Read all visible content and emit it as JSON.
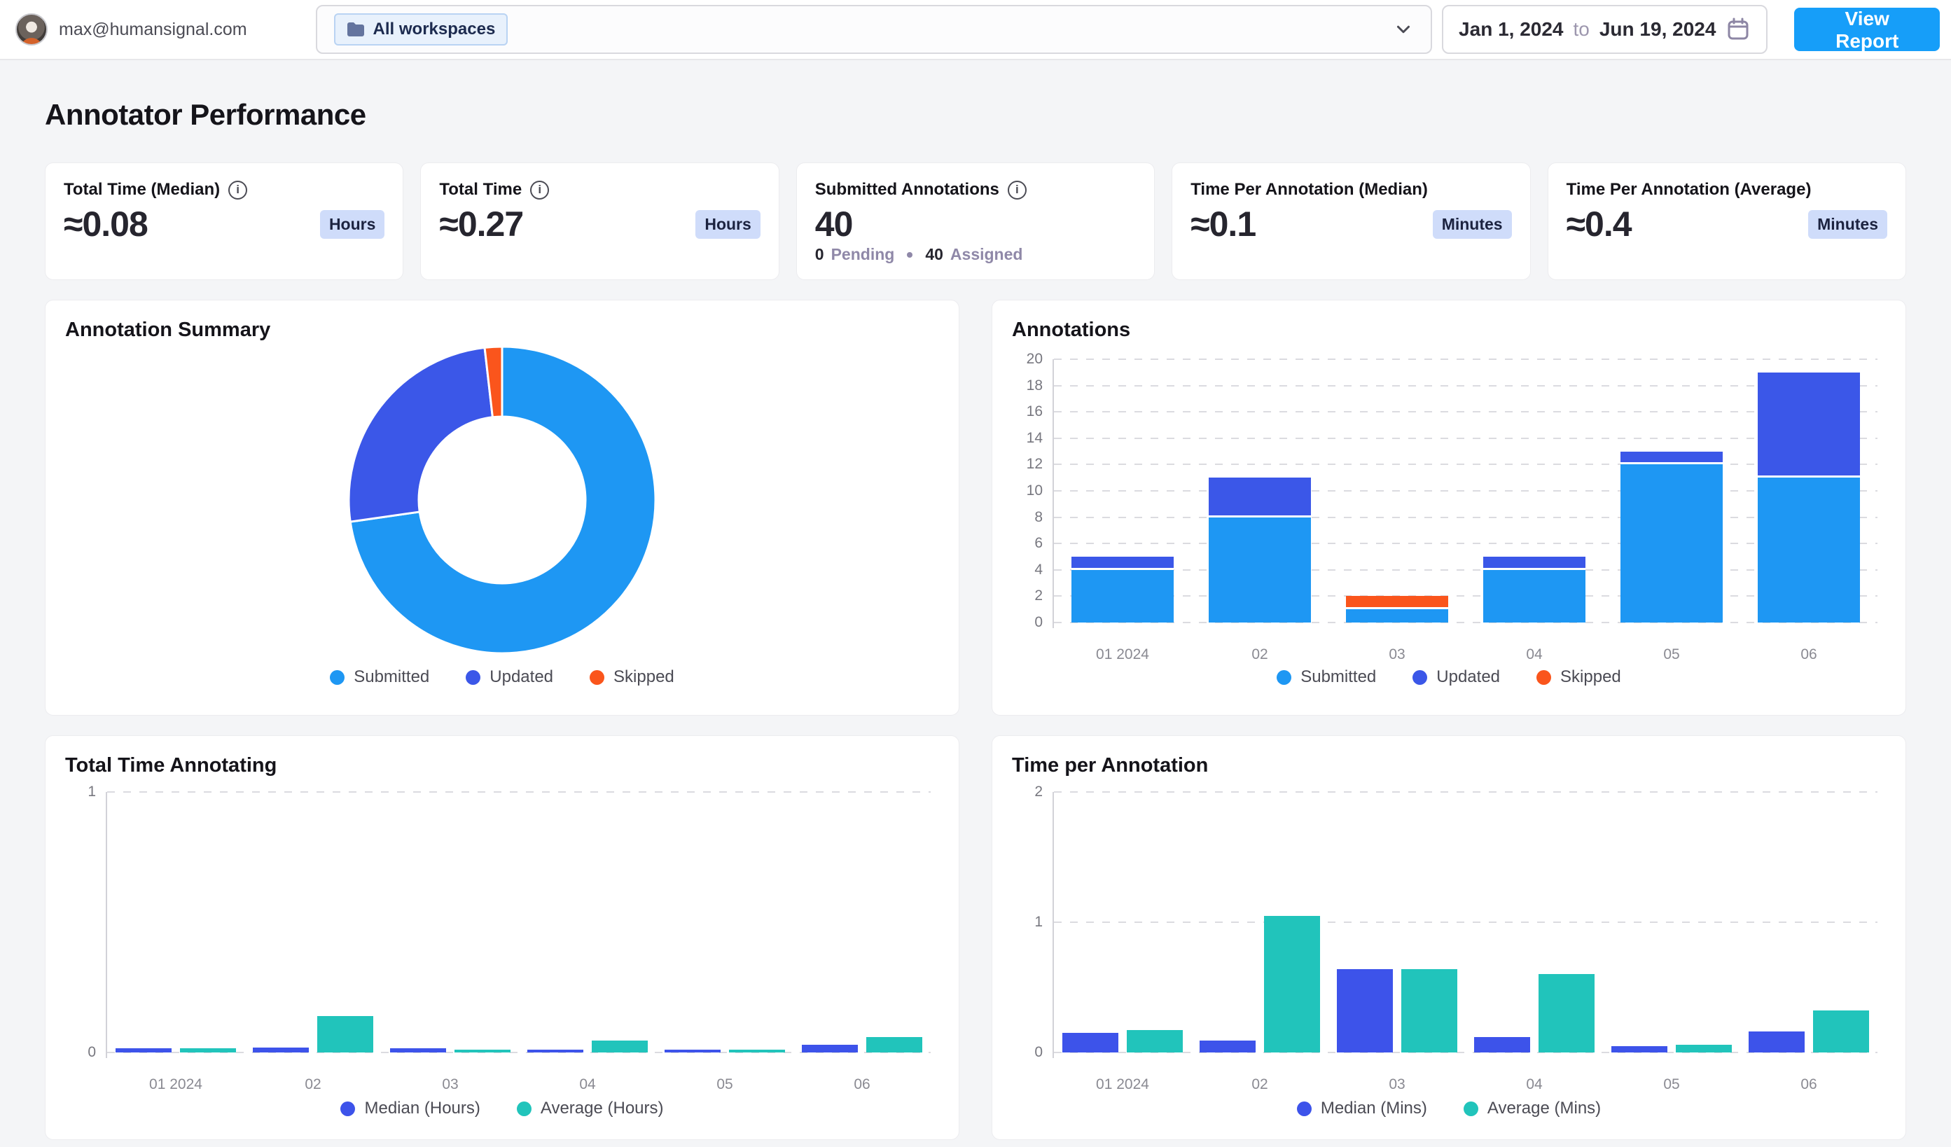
{
  "topbar": {
    "email": "max@humansignal.com",
    "workspace_filter": {
      "label": "All workspaces"
    },
    "date_range": {
      "start": "Jan 1, 2024",
      "connector": "to",
      "end": "Jun 19, 2024"
    },
    "view_report_label": "View Report"
  },
  "page_title": "Annotator Performance",
  "colors": {
    "primary_button": "#169ef9",
    "badge_bg": "#cfdcfa",
    "submitted": "#1e97f3",
    "updated": "#3b57e8",
    "skipped": "#fa551c",
    "median": "#3d53ea",
    "average": "#21c4bb",
    "page_bg": "#f4f5f7"
  },
  "stat_cards": [
    {
      "label": "Total Time (Median)",
      "value": "≈0.08",
      "badge": "Hours"
    },
    {
      "label": "Total Time",
      "value": "≈0.27",
      "badge": "Hours"
    },
    {
      "label": "Submitted Annotations",
      "value": "40",
      "footer": {
        "pending_count": "0",
        "pending_label": "Pending",
        "assigned_count": "40",
        "assigned_label": "Assigned"
      }
    },
    {
      "label": "Time Per Annotation (Median)",
      "value": "≈0.1",
      "badge": "Minutes"
    },
    {
      "label": "Time Per Annotation (Average)",
      "value": "≈0.4",
      "badge": "Minutes"
    }
  ],
  "chart_data": [
    {
      "type": "pie",
      "donut": true,
      "title": "Annotation Summary",
      "labels": [
        "Submitted",
        "Updated",
        "Skipped"
      ],
      "values": [
        40,
        14,
        1
      ],
      "colors": [
        "#1e97f3",
        "#3b57e8",
        "#fa551c"
      ],
      "legend_position": "bottom"
    },
    {
      "type": "bar",
      "stacked": true,
      "title": "Annotations",
      "categories": [
        "01 2024",
        "02",
        "03",
        "04",
        "05",
        "06"
      ],
      "series": [
        {
          "name": "Submitted",
          "color": "#1e97f3",
          "values": [
            4,
            8,
            1,
            4,
            12,
            11
          ]
        },
        {
          "name": "Updated",
          "color": "#3b57e8",
          "values": [
            1,
            3,
            0,
            1,
            1,
            8
          ]
        },
        {
          "name": "Skipped",
          "color": "#fa551c",
          "values": [
            0,
            0,
            1,
            0,
            0,
            0
          ]
        }
      ],
      "ylim": [
        0,
        20
      ],
      "ytick_step": 2,
      "grid": "dashed",
      "legend_position": "bottom"
    },
    {
      "type": "bar",
      "stacked": false,
      "title": "Total Time Annotating",
      "categories": [
        "01 2024",
        "02",
        "03",
        "04",
        "05",
        "06"
      ],
      "series": [
        {
          "name": "Median (Hours)",
          "color": "#3d53ea",
          "values": [
            0.015,
            0.018,
            0.015,
            0.01,
            0.01,
            0.03
          ]
        },
        {
          "name": "Average (Hours)",
          "color": "#21c4bb",
          "values": [
            0.015,
            0.14,
            0.012,
            0.045,
            0.012,
            0.06
          ]
        }
      ],
      "ylim": [
        0,
        1
      ],
      "ytick_step": 1,
      "grid": "dashed",
      "legend_position": "bottom"
    },
    {
      "type": "bar",
      "stacked": false,
      "title": "Time per Annotation",
      "categories": [
        "01 2024",
        "02",
        "03",
        "04",
        "05",
        "06"
      ],
      "series": [
        {
          "name": "Median (Mins)",
          "color": "#3d53ea",
          "values": [
            0.15,
            0.09,
            0.64,
            0.12,
            0.05,
            0.16
          ]
        },
        {
          "name": "Average (Mins)",
          "color": "#21c4bb",
          "values": [
            0.17,
            1.05,
            0.64,
            0.6,
            0.06,
            0.32
          ]
        }
      ],
      "ylim": [
        0,
        2
      ],
      "ytick_step": 1,
      "grid": "dashed",
      "legend_position": "bottom"
    }
  ]
}
